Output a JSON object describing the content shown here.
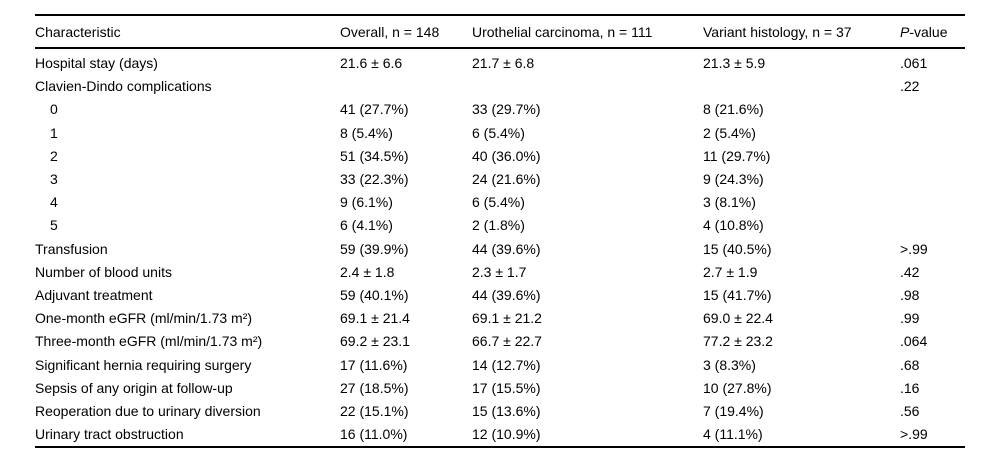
{
  "table": {
    "header": {
      "characteristic": "Characteristic",
      "overall": "Overall, n = 148",
      "urothelial": "Urothelial carcinoma, n = 111",
      "variant": "Variant histology, n = 37",
      "p_italic": "P",
      "p_rest": "-value"
    },
    "rows": [
      {
        "characteristic": "Hospital stay (days)",
        "overall": "21.6 ± 6.6",
        "urothelial": "21.7 ± 6.8",
        "variant": "21.3 ± 5.9",
        "p_value": ".061",
        "indent": false
      },
      {
        "characteristic": "Clavien-Dindo complications",
        "overall": "",
        "urothelial": "",
        "variant": "",
        "p_value": ".22",
        "indent": false
      },
      {
        "characteristic": "0",
        "overall": "41 (27.7%)",
        "urothelial": "33 (29.7%)",
        "variant": "8 (21.6%)",
        "p_value": "",
        "indent": true
      },
      {
        "characteristic": "1",
        "overall": "8 (5.4%)",
        "urothelial": "6 (5.4%)",
        "variant": "2 (5.4%)",
        "p_value": "",
        "indent": true
      },
      {
        "characteristic": "2",
        "overall": "51 (34.5%)",
        "urothelial": "40 (36.0%)",
        "variant": "11 (29.7%)",
        "p_value": "",
        "indent": true
      },
      {
        "characteristic": "3",
        "overall": "33 (22.3%)",
        "urothelial": "24 (21.6%)",
        "variant": "9 (24.3%)",
        "p_value": "",
        "indent": true
      },
      {
        "characteristic": "4",
        "overall": "9 (6.1%)",
        "urothelial": "6 (5.4%)",
        "variant": "3 (8.1%)",
        "p_value": "",
        "indent": true
      },
      {
        "characteristic": "5",
        "overall": "6 (4.1%)",
        "urothelial": "2 (1.8%)",
        "variant": "4 (10.8%)",
        "p_value": "",
        "indent": true
      },
      {
        "characteristic": "Transfusion",
        "overall": "59 (39.9%)",
        "urothelial": "44 (39.6%)",
        "variant": "15 (40.5%)",
        "p_value": ">.99",
        "indent": false
      },
      {
        "characteristic": "Number of blood units",
        "overall": "2.4 ± 1.8",
        "urothelial": "2.3 ± 1.7",
        "variant": "2.7 ± 1.9",
        "p_value": ".42",
        "indent": false
      },
      {
        "characteristic": "Adjuvant treatment",
        "overall": "59 (40.1%)",
        "urothelial": "44 (39.6%)",
        "variant": "15 (41.7%)",
        "p_value": ".98",
        "indent": false
      },
      {
        "characteristic": "One-month eGFR (ml/min/1.73 m²)",
        "overall": "69.1 ± 21.4",
        "urothelial": "69.1 ± 21.2",
        "variant": "69.0 ± 22.4",
        "p_value": ".99",
        "indent": false
      },
      {
        "characteristic": "Three-month eGFR (ml/min/1.73 m²)",
        "overall": "69.2 ± 23.1",
        "urothelial": "66.7 ± 22.7",
        "variant": "77.2 ± 23.2",
        "p_value": ".064",
        "indent": false
      },
      {
        "characteristic": "Significant hernia requiring surgery",
        "overall": "17 (11.6%)",
        "urothelial": "14 (12.7%)",
        "variant": "3 (8.3%)",
        "p_value": ".68",
        "indent": false
      },
      {
        "characteristic": "Sepsis of any origin at follow-up",
        "overall": "27 (18.5%)",
        "urothelial": "17 (15.5%)",
        "variant": "10 (27.8%)",
        "p_value": ".16",
        "indent": false
      },
      {
        "characteristic": "Reoperation due to urinary diversion",
        "overall": "22 (15.1%)",
        "urothelial": "15 (13.6%)",
        "variant": "7 (19.4%)",
        "p_value": ".56",
        "indent": false
      },
      {
        "characteristic": "Urinary tract obstruction",
        "overall": "16 (11.0%)",
        "urothelial": "12 (10.9%)",
        "variant": "4 (11.1%)",
        "p_value": ">.99",
        "indent": false
      }
    ]
  }
}
